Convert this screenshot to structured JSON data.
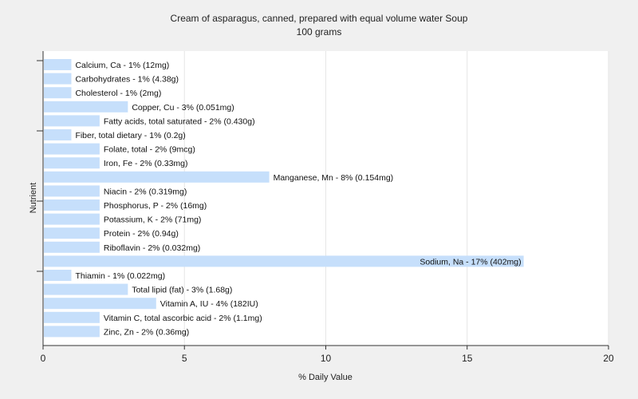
{
  "chart_data": {
    "type": "bar",
    "orientation": "horizontal",
    "title": "Cream of asparagus, canned, prepared with equal volume water Soup",
    "subtitle": "100 grams",
    "xlabel": "% Daily Value",
    "ylabel": "Nutrient",
    "xlim": [
      0,
      20
    ],
    "xticks": [
      0,
      5,
      10,
      15,
      20
    ],
    "grid": true,
    "bar_color": "#c6dffb",
    "categories": [
      "Calcium, Ca",
      "Carbohydrates",
      "Cholesterol",
      "Copper, Cu",
      "Fatty acids, total saturated",
      "Fiber, total dietary",
      "Folate, total",
      "Iron, Fe",
      "Manganese, Mn",
      "Niacin",
      "Phosphorus, P",
      "Potassium, K",
      "Protein",
      "Riboflavin",
      "Sodium, Na",
      "Thiamin",
      "Total lipid (fat)",
      "Vitamin A, IU",
      "Vitamin C, total ascorbic acid",
      "Zinc, Zn"
    ],
    "values": [
      1,
      1,
      1,
      3,
      2,
      1,
      2,
      2,
      8,
      2,
      2,
      2,
      2,
      2,
      17,
      1,
      3,
      4,
      2,
      2
    ],
    "labels": [
      "Calcium, Ca - 1% (12mg)",
      "Carbohydrates - 1% (4.38g)",
      "Cholesterol - 1% (2mg)",
      "Copper, Cu - 3% (0.051mg)",
      "Fatty acids, total saturated - 2% (0.430g)",
      "Fiber, total dietary - 1% (0.2g)",
      "Folate, total - 2% (9mcg)",
      "Iron, Fe - 2% (0.33mg)",
      "Manganese, Mn - 8% (0.154mg)",
      "Niacin - 2% (0.319mg)",
      "Phosphorus, P - 2% (16mg)",
      "Potassium, K - 2% (71mg)",
      "Protein - 2% (0.94g)",
      "Riboflavin - 2% (0.032mg)",
      "Sodium, Na - 17% (402mg)",
      "Thiamin - 1% (0.022mg)",
      "Total lipid (fat) - 3% (1.68g)",
      "Vitamin A, IU - 4% (182IU)",
      "Vitamin C, total ascorbic acid - 2% (1.1mg)",
      "Zinc, Zn - 2% (0.36mg)"
    ]
  }
}
